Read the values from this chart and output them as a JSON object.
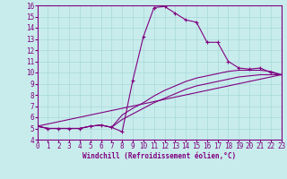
{
  "xlabel": "Windchill (Refroidissement éolien,°C)",
  "background_color": "#c8ecec",
  "line_color": "#800080",
  "grid_color": "#a8d8d8",
  "xlim": [
    0,
    23
  ],
  "ylim": [
    4,
    16
  ],
  "xticks": [
    0,
    1,
    2,
    3,
    4,
    5,
    6,
    7,
    8,
    9,
    10,
    11,
    12,
    13,
    14,
    15,
    16,
    17,
    18,
    19,
    20,
    21,
    22,
    23
  ],
  "yticks": [
    4,
    5,
    6,
    7,
    8,
    9,
    10,
    11,
    12,
    13,
    14,
    15,
    16
  ],
  "line1_x": [
    0,
    1,
    2,
    3,
    4,
    5,
    6,
    7,
    8,
    9,
    10,
    11,
    12,
    13,
    14,
    15,
    16,
    17,
    18,
    19,
    20,
    21,
    22,
    23
  ],
  "line1_y": [
    5.2,
    5.0,
    5.0,
    5.0,
    5.0,
    5.2,
    5.3,
    5.1,
    4.7,
    9.3,
    13.2,
    15.8,
    15.9,
    15.3,
    14.7,
    14.5,
    12.7,
    12.7,
    11.0,
    10.4,
    10.3,
    10.4,
    10.0,
    9.8
  ],
  "line2_x": [
    0,
    1,
    2,
    3,
    4,
    5,
    6,
    7,
    8,
    9,
    10,
    11,
    12,
    13,
    14,
    15,
    16,
    17,
    18,
    19,
    20,
    21,
    22,
    23
  ],
  "line2_y": [
    5.2,
    5.0,
    5.0,
    5.0,
    5.0,
    5.2,
    5.3,
    5.1,
    6.2,
    6.8,
    7.3,
    7.9,
    8.4,
    8.8,
    9.2,
    9.5,
    9.7,
    9.9,
    10.1,
    10.2,
    10.2,
    10.2,
    10.1,
    9.8
  ],
  "line3_x": [
    0,
    1,
    2,
    3,
    4,
    5,
    6,
    7,
    8,
    9,
    10,
    11,
    12,
    13,
    14,
    15,
    16,
    17,
    18,
    19,
    20,
    21,
    22,
    23
  ],
  "line3_y": [
    5.2,
    5.0,
    5.0,
    5.0,
    5.0,
    5.2,
    5.3,
    5.1,
    5.8,
    6.3,
    6.8,
    7.3,
    7.7,
    8.1,
    8.5,
    8.8,
    9.0,
    9.2,
    9.4,
    9.6,
    9.7,
    9.8,
    9.8,
    9.8
  ],
  "line4_x": [
    0,
    23
  ],
  "line4_y": [
    5.2,
    9.8
  ],
  "tick_fontsize": 5.5,
  "xlabel_fontsize": 5.5
}
